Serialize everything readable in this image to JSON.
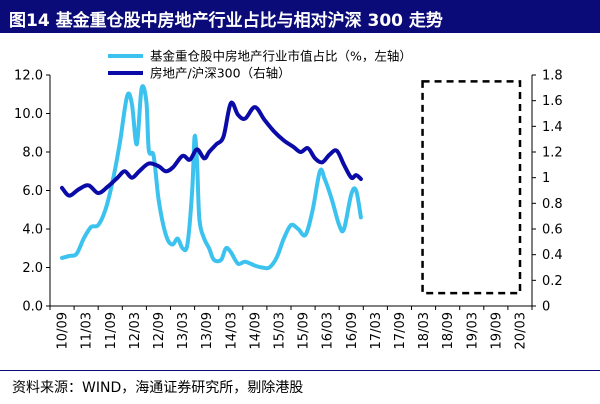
{
  "title": "图14 基金重仓股中房地产行业占比与相对沪深 300 走势",
  "source": "资料来源：WIND，海通证券研究所，剔除港股",
  "colors": {
    "light_series": "#3cc2ee",
    "dark_series": "#0b0ba8",
    "title_bg": "#0a0a78"
  },
  "chart_data": {
    "type": "line",
    "x_categories": [
      "10/09",
      "11/03",
      "11/09",
      "12/03",
      "12/09",
      "13/03",
      "13/09",
      "14/03",
      "14/09",
      "15/03",
      "15/09",
      "16/03",
      "16/09",
      "17/03",
      "17/09",
      "18/03",
      "18/09",
      "19/03",
      "19/09",
      "20/03"
    ],
    "left_axis": {
      "ylim": [
        0,
        12
      ],
      "ticks": [
        "0.0",
        "2.0",
        "4.0",
        "6.0",
        "8.0",
        "10.0",
        "12.0"
      ]
    },
    "right_axis": {
      "ylim": [
        0,
        1.8
      ],
      "ticks": [
        "0",
        "0.2",
        "0.4",
        "0.6",
        "0.8",
        "1",
        "1.2",
        "1.4",
        "1.6",
        "1.8"
      ]
    },
    "legend": "top-center",
    "annotation": "dashed box 18/03–20/03",
    "series": [
      {
        "name": "基金重仓股中房地产行业市值占比（%，左轴）",
        "axis": "left",
        "points": [
          [
            0,
            2.5
          ],
          [
            0.3,
            2.6
          ],
          [
            0.6,
            2.7
          ],
          [
            0.9,
            3.5
          ],
          [
            1.2,
            4.1
          ],
          [
            1.5,
            4.2
          ],
          [
            1.8,
            5.0
          ],
          [
            2.1,
            6.5
          ],
          [
            2.4,
            8.5
          ],
          [
            2.7,
            10.9
          ],
          [
            2.9,
            10.5
          ],
          [
            3.1,
            8.4
          ],
          [
            3.3,
            11.3
          ],
          [
            3.5,
            10.6
          ],
          [
            3.6,
            8.1
          ],
          [
            3.8,
            7.8
          ],
          [
            4.0,
            5.6
          ],
          [
            4.2,
            4.2
          ],
          [
            4.4,
            3.4
          ],
          [
            4.6,
            3.2
          ],
          [
            4.8,
            3.5
          ],
          [
            5.0,
            3.0
          ],
          [
            5.2,
            3.2
          ],
          [
            5.4,
            6.0
          ],
          [
            5.5,
            8.8
          ],
          [
            5.6,
            7.5
          ],
          [
            5.7,
            4.5
          ],
          [
            5.9,
            3.5
          ],
          [
            6.1,
            3.0
          ],
          [
            6.3,
            2.4
          ],
          [
            6.6,
            2.4
          ],
          [
            6.8,
            3.0
          ],
          [
            7.0,
            2.8
          ],
          [
            7.3,
            2.2
          ],
          [
            7.6,
            2.3
          ],
          [
            8.0,
            2.1
          ],
          [
            8.3,
            2.0
          ],
          [
            8.6,
            2.0
          ],
          [
            8.9,
            2.5
          ],
          [
            9.2,
            3.5
          ],
          [
            9.5,
            4.2
          ],
          [
            9.8,
            4.0
          ],
          [
            10.1,
            3.7
          ],
          [
            10.4,
            5.0
          ],
          [
            10.7,
            7.0
          ],
          [
            10.9,
            6.6
          ],
          [
            11.2,
            5.5
          ],
          [
            11.5,
            4.2
          ],
          [
            11.7,
            4.0
          ],
          [
            12.0,
            5.8
          ],
          [
            12.2,
            6.0
          ],
          [
            12.4,
            4.6
          ]
        ]
      },
      {
        "name": "房地产/沪深300（右轴）",
        "axis": "right",
        "points": [
          [
            0,
            0.92
          ],
          [
            0.3,
            0.86
          ],
          [
            0.7,
            0.91
          ],
          [
            1.1,
            0.94
          ],
          [
            1.5,
            0.88
          ],
          [
            1.9,
            0.93
          ],
          [
            2.3,
            1.0
          ],
          [
            2.6,
            1.05
          ],
          [
            2.9,
            1.0
          ],
          [
            3.2,
            1.05
          ],
          [
            3.6,
            1.11
          ],
          [
            4.0,
            1.09
          ],
          [
            4.3,
            1.05
          ],
          [
            4.6,
            1.08
          ],
          [
            5.0,
            1.17
          ],
          [
            5.3,
            1.14
          ],
          [
            5.6,
            1.22
          ],
          [
            5.9,
            1.15
          ],
          [
            6.1,
            1.2
          ],
          [
            6.4,
            1.26
          ],
          [
            6.7,
            1.32
          ],
          [
            7.0,
            1.58
          ],
          [
            7.3,
            1.49
          ],
          [
            7.6,
            1.46
          ],
          [
            8.0,
            1.55
          ],
          [
            8.4,
            1.45
          ],
          [
            8.8,
            1.36
          ],
          [
            9.2,
            1.29
          ],
          [
            9.6,
            1.24
          ],
          [
            9.9,
            1.2
          ],
          [
            10.2,
            1.23
          ],
          [
            10.5,
            1.15
          ],
          [
            10.8,
            1.12
          ],
          [
            11.1,
            1.18
          ],
          [
            11.4,
            1.21
          ],
          [
            11.7,
            1.1
          ],
          [
            12.0,
            1.0
          ],
          [
            12.2,
            1.02
          ],
          [
            12.4,
            0.99
          ]
        ]
      }
    ]
  }
}
